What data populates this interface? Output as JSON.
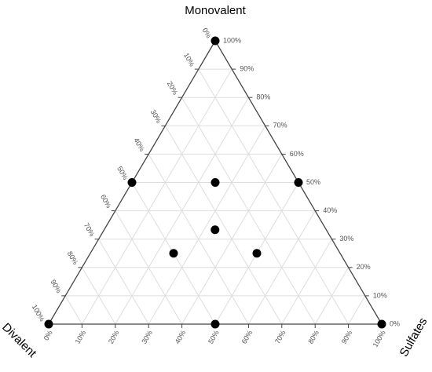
{
  "chart_data": {
    "type": "ternary",
    "axes": {
      "top": "Monovalent",
      "left": "Divalent",
      "right": "Sulfates"
    },
    "ticks": [
      {
        "value": 0,
        "label": "0%"
      },
      {
        "value": 10,
        "label": "10%"
      },
      {
        "value": 20,
        "label": "20%"
      },
      {
        "value": 30,
        "label": "30%"
      },
      {
        "value": 40,
        "label": "40%"
      },
      {
        "value": 50,
        "label": "50%"
      },
      {
        "value": 60,
        "label": "60%"
      },
      {
        "value": 70,
        "label": "70%"
      },
      {
        "value": 80,
        "label": "80%"
      },
      {
        "value": 90,
        "label": "90%"
      },
      {
        "value": 100,
        "label": "100%"
      }
    ],
    "grid": true,
    "color": "#000000",
    "points": [
      {
        "monovalent": 100,
        "divalent": 0,
        "sulfates": 0
      },
      {
        "monovalent": 50,
        "divalent": 50,
        "sulfates": 0
      },
      {
        "monovalent": 50,
        "divalent": 25,
        "sulfates": 25
      },
      {
        "monovalent": 50,
        "divalent": 0,
        "sulfates": 50
      },
      {
        "monovalent": 33.3,
        "divalent": 33.3,
        "sulfates": 33.3
      },
      {
        "monovalent": 25,
        "divalent": 50,
        "sulfates": 25
      },
      {
        "monovalent": 25,
        "divalent": 25,
        "sulfates": 50
      },
      {
        "monovalent": 0,
        "divalent": 100,
        "sulfates": 0
      },
      {
        "monovalent": 0,
        "divalent": 50,
        "sulfates": 50
      },
      {
        "monovalent": 0,
        "divalent": 0,
        "sulfates": 100
      }
    ]
  }
}
